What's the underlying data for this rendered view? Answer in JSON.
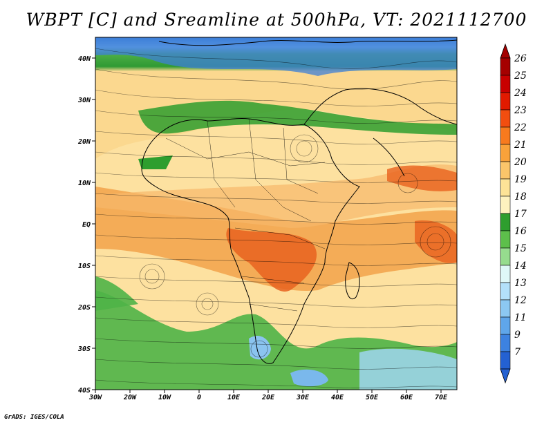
{
  "title": "WBPT [C] and Sreamline at 500hPa, VT: 2021112700",
  "credit": "GrADS: IGES/COLA",
  "map": {
    "lat_labels": [
      "40N",
      "30N",
      "20N",
      "10N",
      "EQ",
      "10S",
      "20S",
      "30S",
      "40S"
    ],
    "lon_labels": [
      "30W",
      "20W",
      "10W",
      "0",
      "10E",
      "20E",
      "30E",
      "40E",
      "50E",
      "60E",
      "70E"
    ]
  },
  "colorbar": {
    "labels": [
      "26",
      "25",
      "24",
      "23",
      "22",
      "21",
      "20",
      "19",
      "18",
      "17",
      "16",
      "15",
      "14",
      "13",
      "12",
      "11",
      "9",
      "7"
    ],
    "colors": [
      "#a50000",
      "#c80000",
      "#e11a00",
      "#f24e10",
      "#f77a1e",
      "#f9a23a",
      "#fbc56a",
      "#fde397",
      "#fef2bf",
      "#2e9e2e",
      "#5dbf4b",
      "#96dc8e",
      "#dff8f8",
      "#b3e0fa",
      "#8cc8f2",
      "#5fa6ea",
      "#3d82e0",
      "#2461d2"
    ]
  }
}
